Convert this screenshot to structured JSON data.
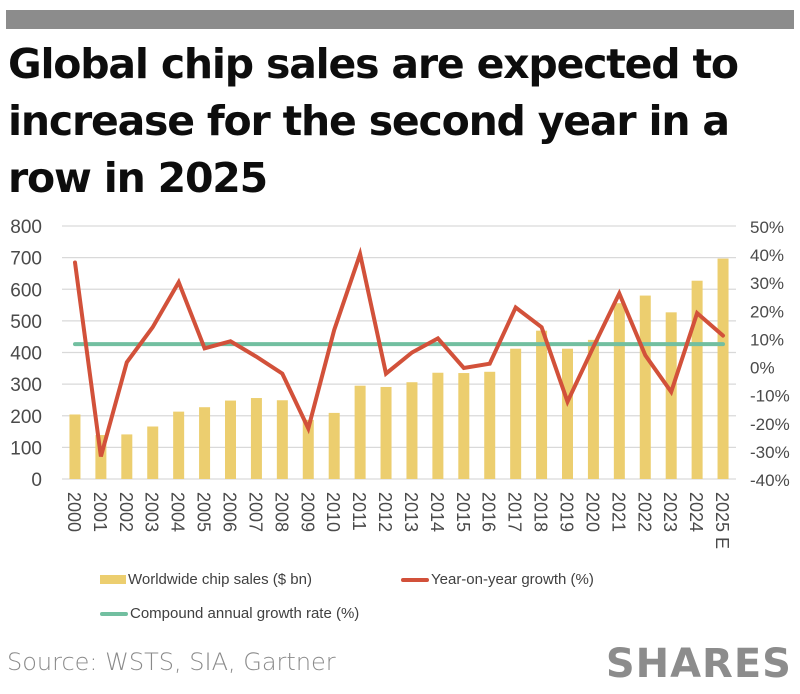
{
  "header": {
    "title": "Global chip sales are expected to increase for the second year in a row in 2025"
  },
  "footer": {
    "source": "Source: WSTS, SIA, Gartner",
    "brand": "SHARES"
  },
  "colors": {
    "bars": "#ecce6f",
    "yoy_line": "#d2513a",
    "cagr_line": "#72bfa0",
    "grid": "#d9d9d9",
    "top_bar": "#8c8c8c"
  },
  "chart_data": {
    "type": "bar",
    "title": "Global chip sales are expected to increase for the second year in a row in 2025",
    "xlabel": "",
    "ylabel": "",
    "categories": [
      "2000",
      "2001",
      "2002",
      "2003",
      "2004",
      "2005",
      "2006",
      "2007",
      "2008",
      "2009",
      "2010",
      "2011",
      "2012",
      "2013",
      "2014",
      "2015",
      "2016",
      "2017",
      "2018",
      "2019",
      "2020",
      "2021",
      "2022",
      "2023",
      "2024",
      "2025 E"
    ],
    "ylim": [
      0,
      800
    ],
    "y_ticks": [
      "0",
      "100",
      "200",
      "300",
      "400",
      "500",
      "600",
      "700",
      "800"
    ],
    "y2lim": [
      -40,
      50
    ],
    "y2_ticks": [
      "-40%",
      "-30%",
      "-20%",
      "-10%",
      "0%",
      "10%",
      "20%",
      "30%",
      "40%",
      "50%"
    ],
    "grid": true,
    "legend_position": "bottom",
    "series": [
      {
        "name": "Worldwide chip sales ($ bn)",
        "type": "bar",
        "axis": "left",
        "values": [
          204,
          139,
          141,
          166,
          213,
          227,
          248,
          256,
          249,
          187,
          209,
          295,
          291,
          306,
          336,
          335,
          339,
          412,
          469,
          412,
          440,
          556,
          580,
          527,
          627,
          697
        ]
      },
      {
        "name": "Year-on-year growth  (%)",
        "type": "line",
        "axis": "right",
        "values": [
          37,
          -32,
          1.5,
          14,
          30,
          6.5,
          9,
          3.5,
          -2.5,
          -22,
          13,
          40,
          -2.5,
          5,
          10,
          -0.5,
          1,
          21,
          14,
          -12.5,
          7,
          26,
          4,
          -9,
          19,
          11
        ]
      },
      {
        "name": "Compound annual growth rate (%)",
        "type": "line",
        "axis": "right",
        "values": [
          8,
          8,
          8,
          8,
          8,
          8,
          8,
          8,
          8,
          8,
          8,
          8,
          8,
          8,
          8,
          8,
          8,
          8,
          8,
          8,
          8,
          8,
          8,
          8,
          8,
          8
        ]
      }
    ]
  }
}
